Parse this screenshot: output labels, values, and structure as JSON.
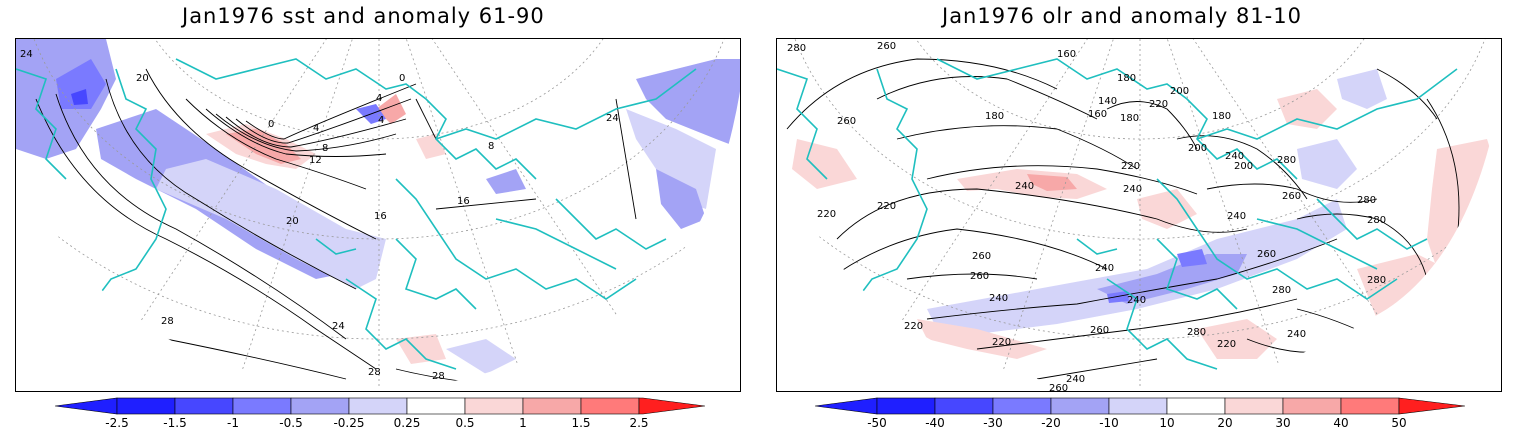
{
  "panels": [
    {
      "title": "Jan1976 sst and anomaly 61-90",
      "variable": "sst",
      "climatology": "61-90",
      "contour_labels": [
        "24",
        "20",
        "0",
        "4",
        "8",
        "12",
        "0",
        "4",
        "4",
        "8",
        "16",
        "16",
        "20",
        "24",
        "24",
        "28",
        "28",
        "28"
      ],
      "colorbar": {
        "labels": [
          "-2.5",
          "-1.5",
          "-1",
          "-0.5",
          "-0.25",
          "0.25",
          "0.5",
          "1",
          "1.5",
          "2.5"
        ],
        "colors": [
          "#1f1fff",
          "#4747ff",
          "#7a7aff",
          "#a3a3f5",
          "#d4d4f9",
          "#ffffff",
          "#fad7d7",
          "#f7a8a8",
          "#ff7a7a",
          "#ff4747",
          "#ff1f1f"
        ]
      }
    },
    {
      "title": "Jan1976 olr and anomaly 81-10",
      "variable": "olr",
      "climatology": "81-10",
      "contour_labels": [
        "280",
        "260",
        "160",
        "180",
        "200",
        "220",
        "140",
        "160",
        "180",
        "180",
        "180",
        "200",
        "220",
        "260",
        "240",
        "240",
        "220",
        "240",
        "260",
        "260",
        "280",
        "240",
        "200",
        "220",
        "220",
        "240",
        "260",
        "260",
        "220",
        "240",
        "240",
        "260",
        "280",
        "280",
        "280",
        "240",
        "220",
        "240",
        "260",
        "280",
        "280"
      ],
      "colorbar": {
        "labels": [
          "-50",
          "-40",
          "-30",
          "-20",
          "-10",
          "10",
          "20",
          "30",
          "40",
          "50"
        ],
        "colors": [
          "#1f1fff",
          "#4747ff",
          "#7a7aff",
          "#a3a3f5",
          "#d4d4f9",
          "#ffffff",
          "#fad7d7",
          "#f7a8a8",
          "#ff7a7a",
          "#ff4747",
          "#ff1f1f"
        ]
      }
    }
  ],
  "colors": {
    "coastline": "#1fbfbf",
    "contour": "#000000",
    "grid": "#9a9a9a"
  }
}
